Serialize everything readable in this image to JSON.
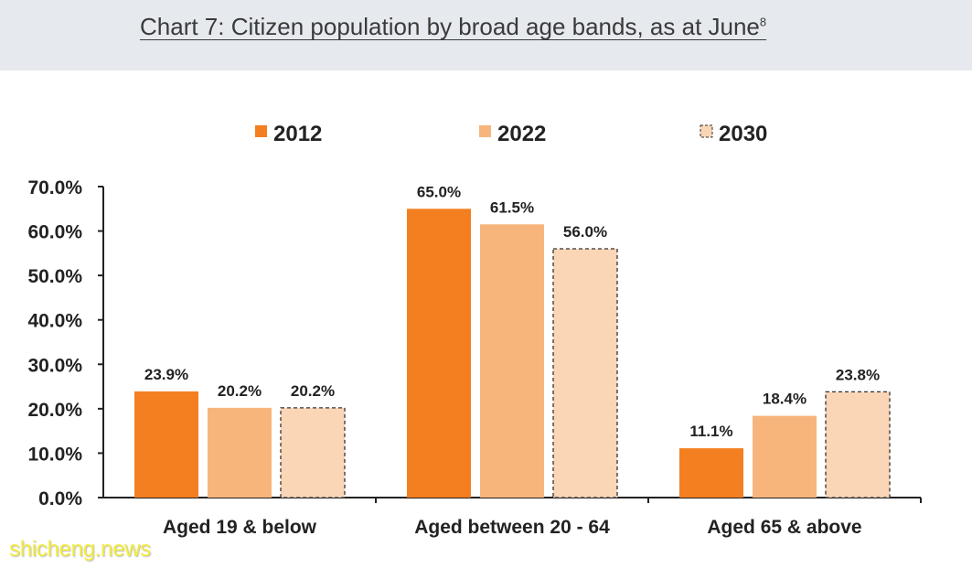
{
  "header": {
    "title": "Chart 7: Citizen population by broad age bands, as at June",
    "footnote_ref": "8"
  },
  "watermark": "shicheng.news",
  "colors": {
    "2012": "#f47f20",
    "2022": "#f7b57c",
    "2030": "#fad5b6",
    "axis": "#222222",
    "header_bg": "#e6e9ee"
  },
  "chart_data": {
    "type": "bar",
    "title": "Chart 7: Citizen population by broad age bands, as at June",
    "categories": [
      "Aged 19 & below",
      "Aged between 20 - 64",
      "Aged 65 & above"
    ],
    "series": [
      {
        "name": "2012",
        "values": [
          23.9,
          65.0,
          11.1
        ],
        "labels": [
          "23.9%",
          "65.0%",
          "11.1%"
        ],
        "style": "solid"
      },
      {
        "name": "2022",
        "values": [
          20.2,
          61.5,
          18.4
        ],
        "labels": [
          "20.2%",
          "61.5%",
          "18.4%"
        ],
        "style": "solid"
      },
      {
        "name": "2030",
        "values": [
          20.2,
          56.0,
          23.8
        ],
        "labels": [
          "20.2%",
          "56.0%",
          "23.8%"
        ],
        "style": "dashed-outline"
      }
    ],
    "ylim": [
      0,
      70
    ],
    "yticks": [
      "0.0%",
      "10.0%",
      "20.0%",
      "30.0%",
      "40.0%",
      "50.0%",
      "60.0%",
      "70.0%"
    ],
    "xlabel": "",
    "ylabel": "",
    "grid": false,
    "legend_position": "top-center"
  }
}
